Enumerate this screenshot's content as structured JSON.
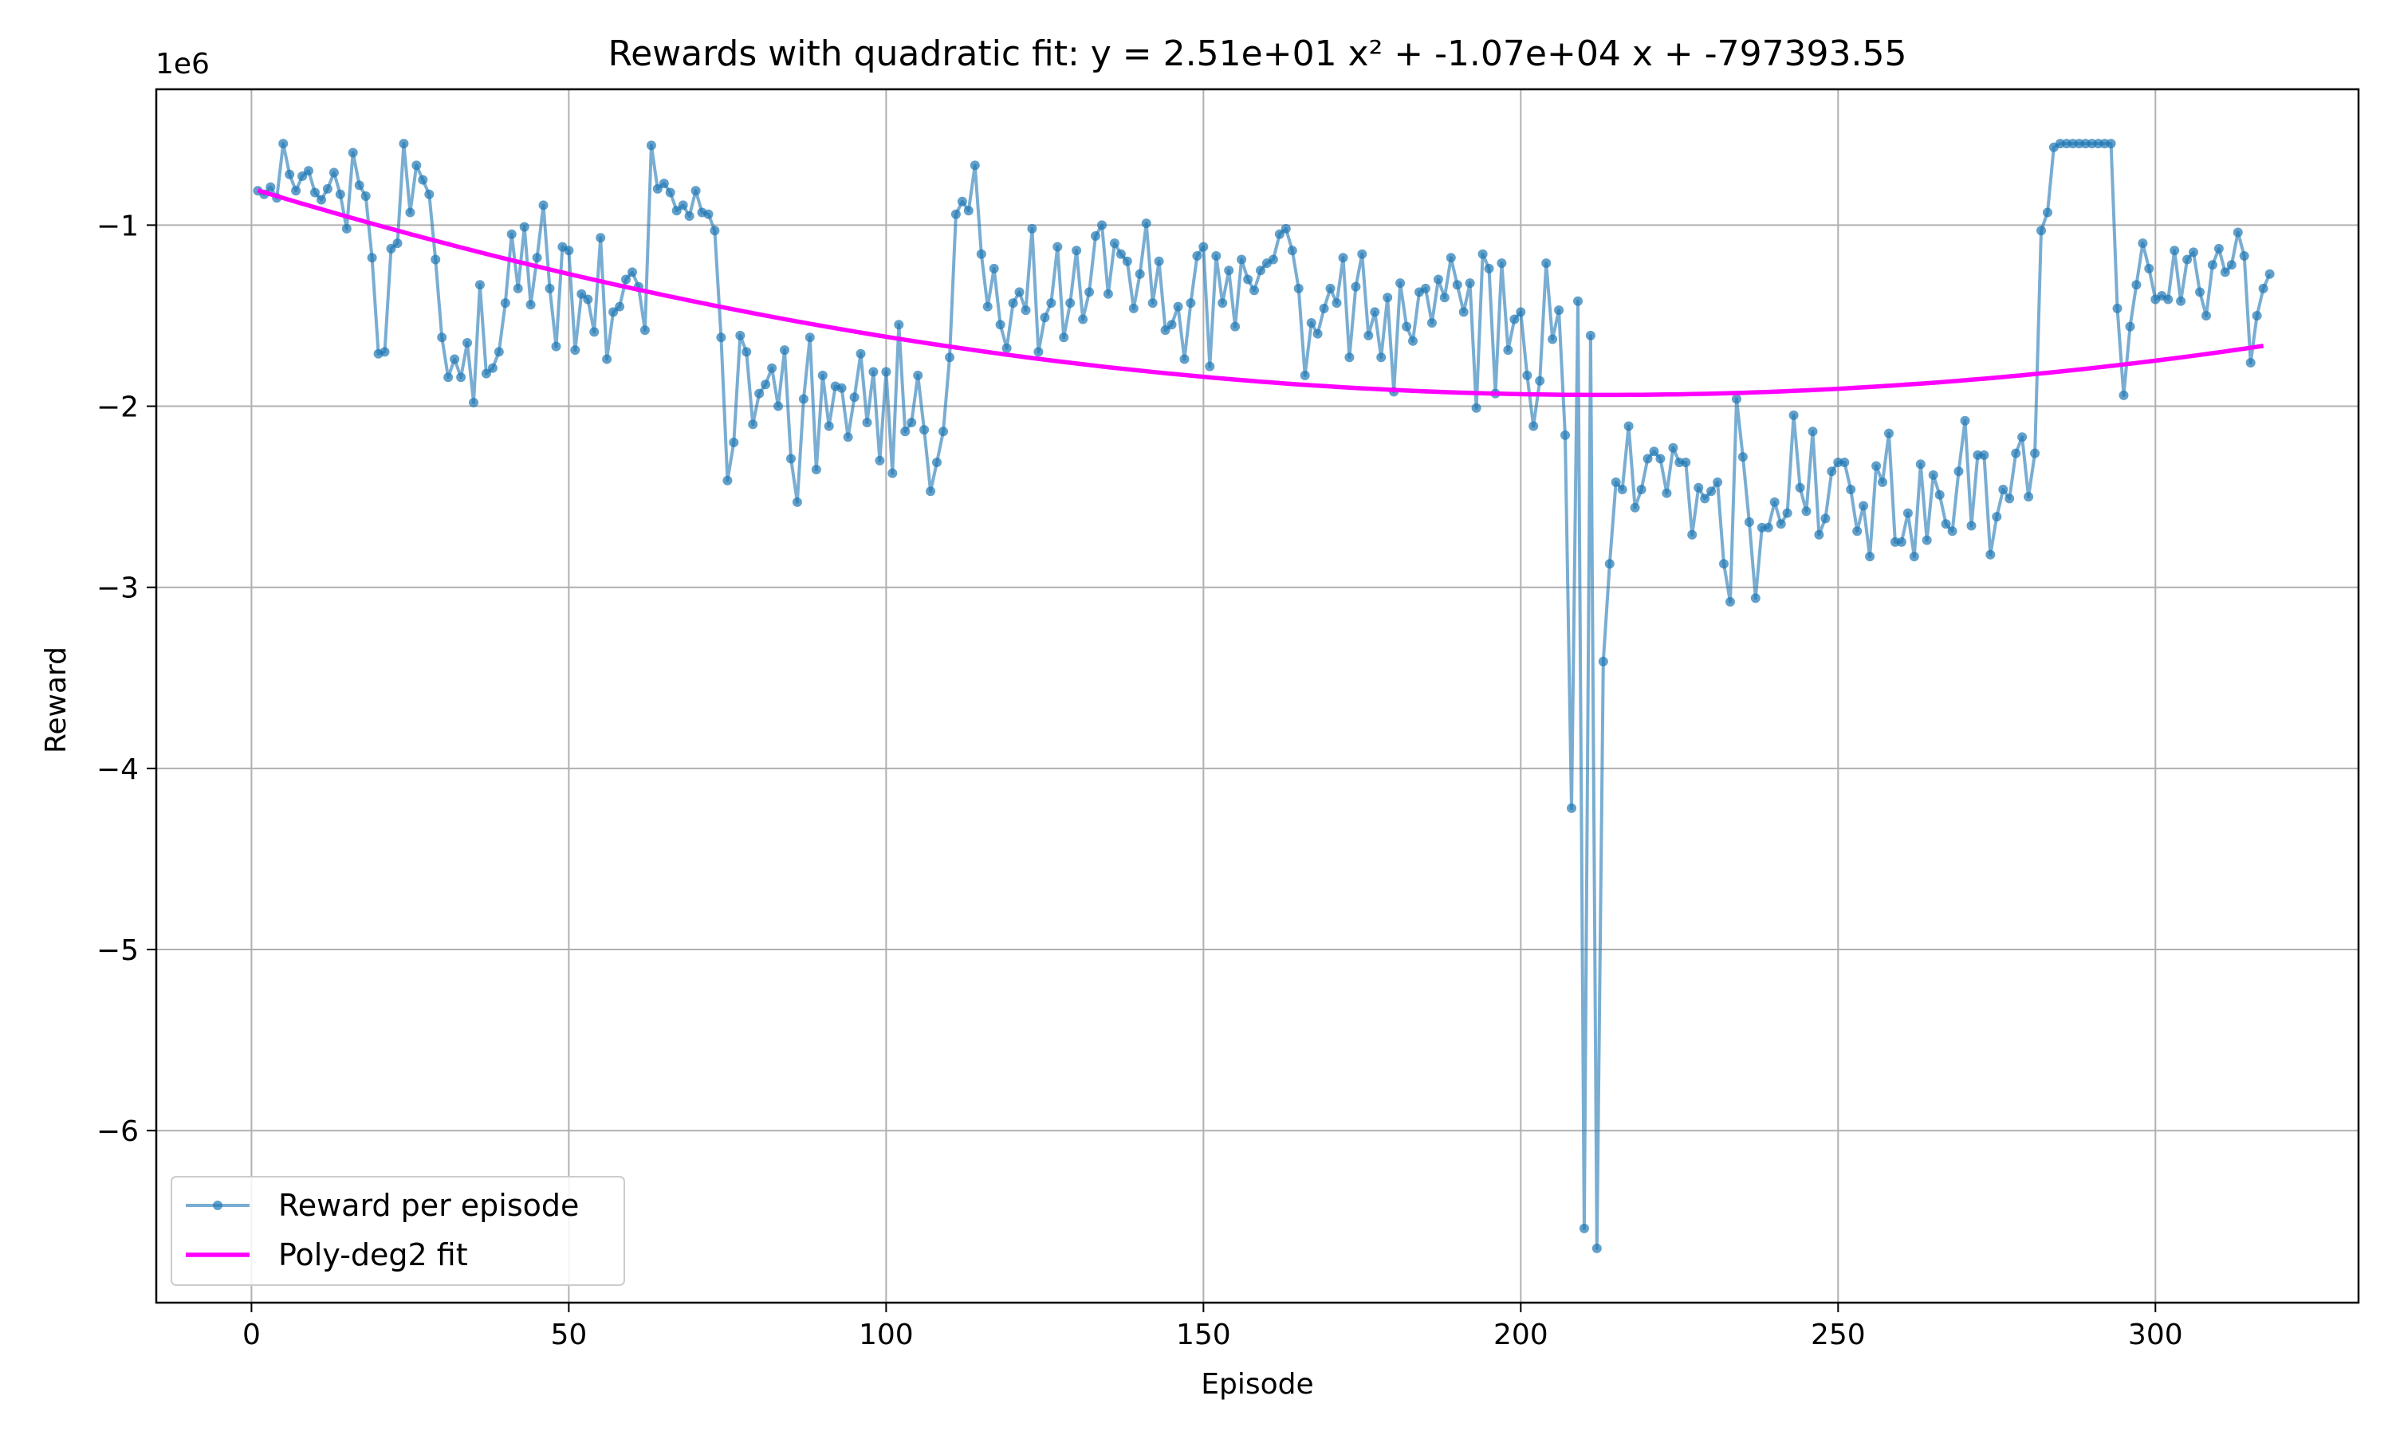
{
  "chart_data": {
    "type": "line",
    "title": "Rewards with quadratic fit: y = 2.51e+01 x² + -1.07e+04 x + -797393.55",
    "xlabel": "Episode",
    "ylabel": "Reward",
    "y_offset_label": "1e6",
    "xlim": [
      -15,
      332
    ],
    "ylim": [
      -6.95,
      -0.25
    ],
    "y_scale": 1000000,
    "x_ticks": [
      0,
      50,
      100,
      150,
      200,
      250,
      300
    ],
    "x_tick_labels": [
      "0",
      "50",
      "100",
      "150",
      "200",
      "250",
      "300"
    ],
    "y_ticks": [
      -1,
      -2,
      -3,
      -4,
      -5,
      -6
    ],
    "y_tick_labels": [
      "−1",
      "−2",
      "−3",
      "−4",
      "−5",
      "−6"
    ],
    "grid": true,
    "legend_position": "lower-left",
    "series": [
      {
        "name": "Reward per episode",
        "kind": "line-markers",
        "color": "#1f77b4",
        "x_start": 1,
        "values": [
          -0.81,
          -0.83,
          -0.79,
          -0.85,
          -0.55,
          -0.72,
          -0.81,
          -0.73,
          -0.7,
          -0.82,
          -0.86,
          -0.8,
          -0.71,
          -0.83,
          -1.02,
          -0.6,
          -0.78,
          -0.84,
          -1.18,
          -1.71,
          -1.7,
          -1.13,
          -1.1,
          -0.55,
          -0.93,
          -0.67,
          -0.75,
          -0.83,
          -1.19,
          -1.62,
          -1.84,
          -1.74,
          -1.84,
          -1.65,
          -1.98,
          -1.33,
          -1.82,
          -1.79,
          -1.7,
          -1.43,
          -1.05,
          -1.35,
          -1.01,
          -1.44,
          -1.18,
          -0.89,
          -1.35,
          -1.67,
          -1.12,
          -1.14,
          -1.69,
          -1.38,
          -1.41,
          -1.59,
          -1.07,
          -1.74,
          -1.48,
          -1.45,
          -1.3,
          -1.26,
          -1.34,
          -1.58,
          -0.56,
          -0.8,
          -0.77,
          -0.82,
          -0.92,
          -0.89,
          -0.95,
          -0.81,
          -0.93,
          -0.94,
          -1.03,
          -1.62,
          -2.41,
          -2.2,
          -1.61,
          -1.7,
          -2.1,
          -1.93,
          -1.88,
          -1.79,
          -2.0,
          -1.69,
          -2.29,
          -2.53,
          -1.96,
          -1.62,
          -2.35,
          -1.83,
          -2.11,
          -1.89,
          -1.9,
          -2.17,
          -1.95,
          -1.71,
          -2.09,
          -1.81,
          -2.3,
          -1.81,
          -2.37,
          -1.55,
          -2.14,
          -2.09,
          -1.83,
          -2.13,
          -2.47,
          -2.31,
          -2.14,
          -1.73,
          -0.94,
          -0.87,
          -0.92,
          -0.67,
          -1.16,
          -1.45,
          -1.24,
          -1.55,
          -1.68,
          -1.43,
          -1.37,
          -1.47,
          -1.02,
          -1.7,
          -1.51,
          -1.43,
          -1.12,
          -1.62,
          -1.43,
          -1.14,
          -1.52,
          -1.37,
          -1.06,
          -1.0,
          -1.38,
          -1.1,
          -1.16,
          -1.2,
          -1.46,
          -1.27,
          -0.99,
          -1.43,
          -1.2,
          -1.58,
          -1.55,
          -1.45,
          -1.74,
          -1.43,
          -1.17,
          -1.12,
          -1.78,
          -1.17,
          -1.43,
          -1.25,
          -1.56,
          -1.19,
          -1.3,
          -1.36,
          -1.25,
          -1.21,
          -1.19,
          -1.05,
          -1.02,
          -1.14,
          -1.35,
          -1.83,
          -1.54,
          -1.6,
          -1.46,
          -1.35,
          -1.43,
          -1.18,
          -1.73,
          -1.34,
          -1.16,
          -1.61,
          -1.48,
          -1.73,
          -1.4,
          -1.92,
          -1.32,
          -1.56,
          -1.64,
          -1.37,
          -1.35,
          -1.54,
          -1.3,
          -1.4,
          -1.18,
          -1.33,
          -1.48,
          -1.32,
          -2.01,
          -1.16,
          -1.24,
          -1.93,
          -1.21,
          -1.69,
          -1.52,
          -1.48,
          -1.83,
          -2.11,
          -1.86,
          -1.21,
          -1.63,
          -1.47,
          -2.16,
          -4.22,
          -1.42,
          -6.54,
          -1.61,
          -6.65,
          -3.41,
          -2.87,
          -2.42,
          -2.46,
          -2.11,
          -2.56,
          -2.46,
          -2.29,
          -2.25,
          -2.29,
          -2.48,
          -2.23,
          -2.31,
          -2.31,
          -2.71,
          -2.45,
          -2.51,
          -2.47,
          -2.42,
          -2.87,
          -3.08,
          -1.96,
          -2.28,
          -2.64,
          -3.06,
          -2.67,
          -2.67,
          -2.53,
          -2.65,
          -2.59,
          -2.05,
          -2.45,
          -2.58,
          -2.14,
          -2.71,
          -2.62,
          -2.36,
          -2.31,
          -2.31,
          -2.46,
          -2.69,
          -2.55,
          -2.83,
          -2.33,
          -2.42,
          -2.15,
          -2.75,
          -2.75,
          -2.59,
          -2.83,
          -2.32,
          -2.74,
          -2.38,
          -2.49,
          -2.65,
          -2.69,
          -2.36,
          -2.08,
          -2.66,
          -2.27,
          -2.27,
          -2.82,
          -2.61,
          -2.46,
          -2.51,
          -2.26,
          -2.17,
          -2.5,
          -2.26,
          -1.03,
          -0.93,
          -0.57,
          -0.55,
          -0.55,
          -0.55,
          -0.55,
          -0.55,
          -0.55,
          -0.55,
          -0.55,
          -0.55,
          -1.46,
          -1.94,
          -1.56,
          -1.33,
          -1.1,
          -1.24,
          -1.41,
          -1.39,
          -1.41,
          -1.14,
          -1.42,
          -1.19,
          -1.15,
          -1.37,
          -1.5,
          -1.22,
          -1.13,
          -1.26,
          -1.22,
          -1.04,
          -1.17,
          -1.76,
          -1.5,
          -1.35,
          -1.27
        ]
      },
      {
        "name": "Poly-deg2 fit",
        "kind": "line",
        "color": "#ff00ff",
        "coefficients": {
          "a": 25.1,
          "b": -10700,
          "c": -797393.55
        },
        "x_range": [
          1,
          317
        ]
      }
    ]
  }
}
